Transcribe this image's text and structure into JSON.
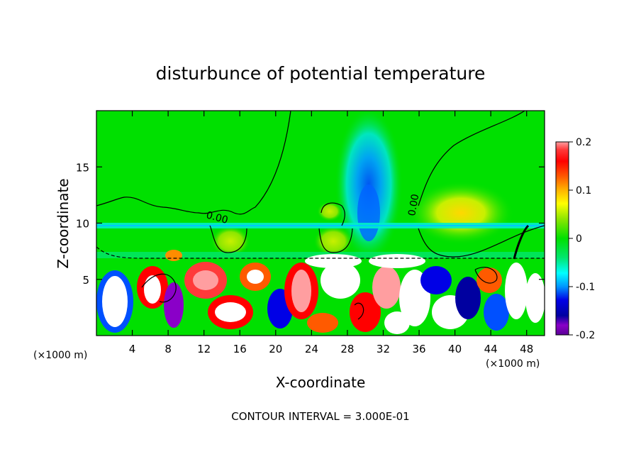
{
  "chart_data": {
    "type": "heatmap",
    "title": "disturbunce of potential temperature",
    "xlabel": "X-coordinate",
    "ylabel": "Z-coordinate",
    "x_unit": "(×1000 m)",
    "x_unit_right": "(×1000 m)",
    "xlim": [
      0,
      50
    ],
    "ylim": [
      0,
      20
    ],
    "x_ticks": [
      4,
      8,
      12,
      16,
      20,
      24,
      28,
      32,
      36,
      40,
      44,
      48
    ],
    "y_ticks": [
      5,
      10,
      15
    ],
    "colorbar": {
      "range": [
        -0.2,
        0.2
      ],
      "tick_values": [
        0.2,
        0.1,
        0,
        -0.1,
        -0.2
      ],
      "tick_labels": [
        "0.2",
        "0.1",
        "0",
        "-0.1",
        "-0.2"
      ],
      "colors": [
        "#ff9ea0",
        "#ff3a3a",
        "#ff0000",
        "#ff5a00",
        "#ff8c00",
        "#ffb400",
        "#ffd800",
        "#ffff00",
        "#c8f000",
        "#8ce600",
        "#41e600",
        "#00e000",
        "#00e66e",
        "#00f0c8",
        "#00ffff",
        "#00c8ff",
        "#0096ff",
        "#0050ff",
        "#0000e6",
        "#0000a0",
        "#8a00c8",
        "#5a0096"
      ]
    },
    "contour_labels": [
      {
        "text": "0.00",
        "x": 13.3,
        "z": 10.5
      },
      {
        "text": "0.00",
        "x": 35.0,
        "z": 11.5
      }
    ],
    "footnote": "CONTOUR INTERVAL = 3.000E-01"
  }
}
